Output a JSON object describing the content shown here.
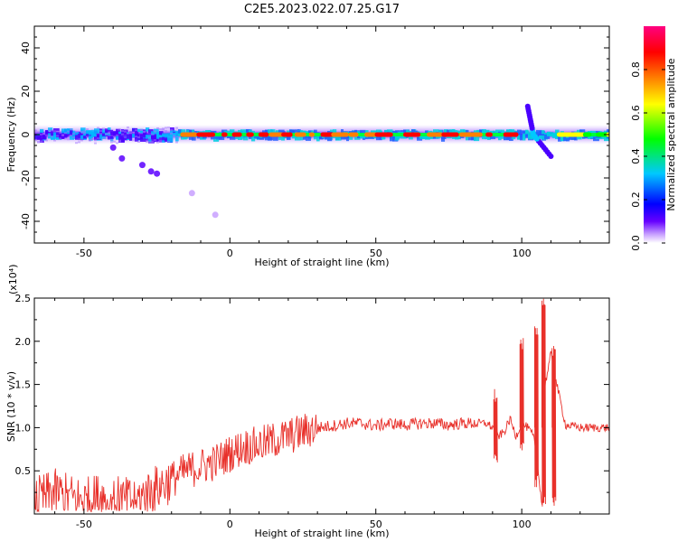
{
  "title": "C2E5.2023.022.07.25.G17",
  "chart_data": [
    {
      "type": "heatmap",
      "xlabel": "Height of straight line (km)",
      "ylabel": "Frequency (Hz)",
      "xlim": [
        -67,
        130
      ],
      "ylim": [
        -50,
        50
      ],
      "xticks": [
        -50,
        0,
        50,
        100
      ],
      "yticks": [
        -40,
        -20,
        0,
        20,
        40
      ],
      "colorbar": {
        "label": "Normalized spectral amplitude",
        "range": [
          0.0,
          1.0
        ],
        "ticks": [
          "0.0",
          "0.2",
          "0.4",
          "0.6",
          "0.8"
        ],
        "colormap": [
          "#ffffff",
          "#c8a0ff",
          "#6600ff",
          "#0000ff",
          "#00c8ff",
          "#00ff00",
          "#ffff00",
          "#ff8000",
          "#ff0000",
          "#ff0080"
        ]
      },
      "ridge": {
        "center_freq_hz": 0,
        "low_altitude_offsets": [
          {
            "x": -40,
            "y": -6
          },
          {
            "x": -37,
            "y": -11
          },
          {
            "x": -30,
            "y": -14
          },
          {
            "x": -27,
            "y": -17
          },
          {
            "x": -25,
            "y": -18
          },
          {
            "x": -13,
            "y": -27
          },
          {
            "x": -5,
            "y": -37
          }
        ],
        "peak_amplitude_segments": [
          {
            "x_start": -17,
            "x_end": 95,
            "amplitude": 0.9
          },
          {
            "x_start": 112,
            "x_end": 130,
            "amplitude": 0.7
          }
        ],
        "disturbance": {
          "x": 104,
          "y_max": 13,
          "y_min": -10
        }
      }
    },
    {
      "type": "line",
      "xlabel": "Height of straight line (km)",
      "ylabel": "SNR (10 * v/v)",
      "y_multiplier": "(x10⁴)",
      "xlim": [
        -67,
        130
      ],
      "ylim": [
        0,
        2.5
      ],
      "xticks": [
        -50,
        0,
        50,
        100
      ],
      "yticks": [
        0.5,
        1.0,
        1.5,
        2.0,
        2.5
      ],
      "series": [
        {
          "color": "#e8302a",
          "x": [
            -67,
            -60,
            -55,
            -50,
            -45,
            -40,
            -35,
            -30,
            -25,
            -20,
            -15,
            -10,
            -5,
            0,
            5,
            10,
            15,
            20,
            25,
            30,
            35,
            40,
            45,
            50,
            55,
            60,
            65,
            70,
            75,
            80,
            85,
            88,
            90,
            92,
            94,
            96,
            98,
            100,
            102,
            104,
            106,
            107,
            108,
            110,
            112,
            115,
            120,
            125,
            130
          ],
          "values": [
            0.15,
            0.25,
            0.2,
            0.15,
            0.2,
            0.18,
            0.15,
            0.2,
            0.3,
            0.4,
            0.5,
            0.55,
            0.6,
            0.7,
            0.78,
            0.8,
            0.85,
            0.9,
            0.95,
            1.0,
            1.02,
            1.05,
            1.05,
            1.02,
            1.05,
            1.03,
            1.05,
            1.05,
            1.03,
            1.05,
            1.05,
            1.05,
            1.0,
            0.9,
            0.95,
            1.1,
            0.9,
            1.05,
            1.0,
            0.9,
            0.4,
            0.1,
            1.5,
            1.85,
            1.5,
            1.03,
            1.0,
            1.0,
            1.0
          ]
        }
      ],
      "spikes": [
        {
          "x": 91,
          "y_max": 1.45,
          "y_min": 0.55
        },
        {
          "x": 100,
          "y_max": 2.05,
          "y_min": 0.7
        },
        {
          "x": 105,
          "y_max": 2.2,
          "y_min": 0.3
        },
        {
          "x": 107.5,
          "y_max": 2.5,
          "y_min": 0.05
        },
        {
          "x": 111,
          "y_max": 1.95,
          "y_min": 0.05
        }
      ]
    }
  ]
}
